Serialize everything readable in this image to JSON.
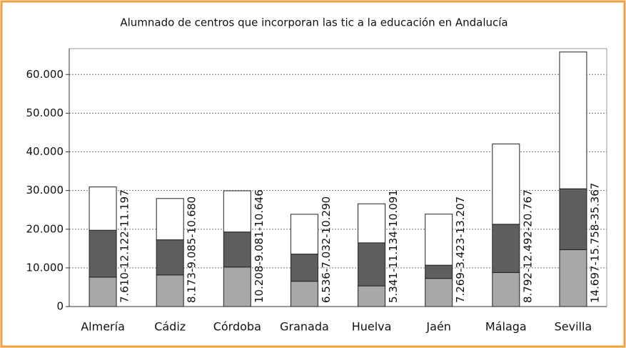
{
  "chart_data": {
    "type": "stacked_bar",
    "title": "Alumnado de centros que incorporan las tic a la educación en Andalucía",
    "categories": [
      "Almería",
      "Cádiz",
      "Córdoba",
      "Granada",
      "Huelva",
      "Jaén",
      "Málaga",
      "Sevilla"
    ],
    "series": [
      {
        "color": "#a8a8a8",
        "values": [
          7610,
          8173,
          10208,
          6536,
          5341,
          7269,
          8792,
          14697
        ]
      },
      {
        "color": "#5e5e5e",
        "values": [
          12122,
          9085,
          9081,
          7032,
          11134,
          3423,
          12492,
          15758
        ]
      },
      {
        "color": "#ffffff",
        "values": [
          11197,
          10680,
          10646,
          10290,
          10091,
          13207,
          20767,
          35367
        ]
      }
    ],
    "value_labels": [
      "7.610-12.122-11.197",
      "8.173-9.085-10.680",
      "10.208-9.081-10.646",
      "6.536-7.032-10.290",
      "5.341-11.134-10.091",
      "7.269-3.423-13.207",
      "8.792-12.492-20.767",
      "14.697-15.758-35.367"
    ],
    "ylim": [
      0,
      66700
    ],
    "yticks": [
      0,
      {
        "value": 10000,
        "label": "10.000"
      },
      {
        "value": 20000,
        "label": "20.000"
      },
      {
        "value": 30000,
        "label": "30.000"
      },
      {
        "value": 40000,
        "label": "40.000"
      },
      {
        "value": 50000,
        "label": "50.000"
      },
      {
        "value": 60000,
        "label": "60.000"
      }
    ],
    "grid": true
  }
}
